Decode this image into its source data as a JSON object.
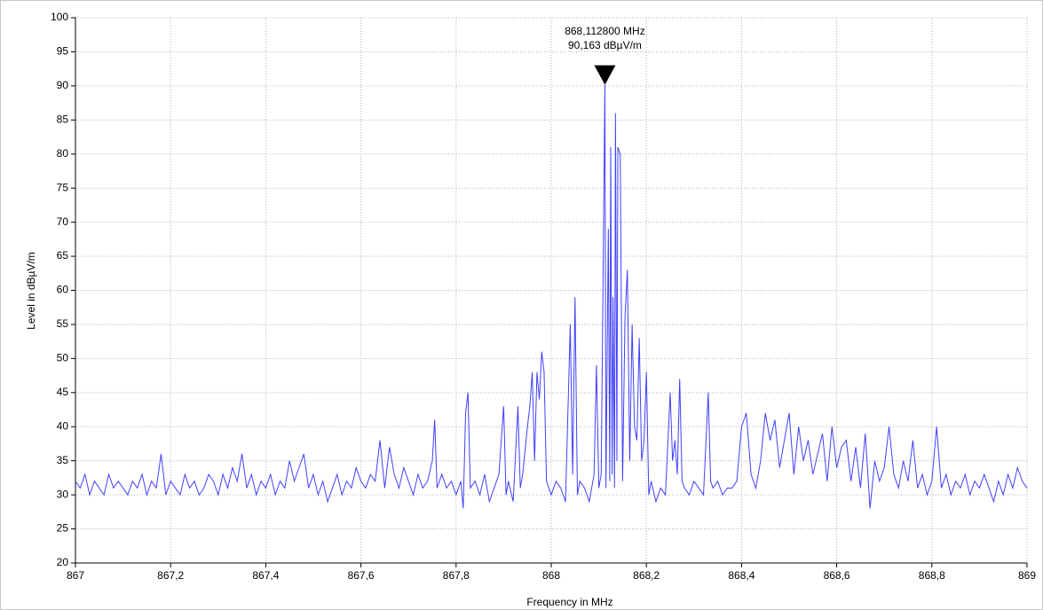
{
  "chart_data": {
    "type": "line",
    "x_label": "Frequency in MHz",
    "y_label": "Level in dBµV/m",
    "color": "#4040ff",
    "grid": true,
    "xlim": [
      867,
      869
    ],
    "xticks": [
      867,
      {
        "value": 867.2,
        "label": "867,2"
      },
      {
        "value": 867.4,
        "label": "867,4"
      },
      {
        "value": 867.6,
        "label": "867,6"
      },
      {
        "value": 867.8,
        "label": "867,8"
      },
      868,
      {
        "value": 868.2,
        "label": "868,2"
      },
      {
        "value": 868.4,
        "label": "868,4"
      },
      {
        "value": 868.6,
        "label": "868,6"
      },
      {
        "value": 868.8,
        "label": "868,8"
      },
      869
    ],
    "ylim": [
      20,
      100
    ],
    "yticks": [
      20,
      25,
      30,
      35,
      40,
      45,
      50,
      55,
      60,
      65,
      70,
      75,
      80,
      85,
      90,
      95,
      100
    ],
    "marker": {
      "x": 868.1128,
      "y": 90.163,
      "labels": [
        "868,112800 MHz",
        "90,163 dBµV/m"
      ]
    },
    "x": [
      867.0,
      867.01,
      867.02,
      867.03,
      867.04,
      867.05,
      867.06,
      867.07,
      867.08,
      867.09,
      867.1,
      867.11,
      867.12,
      867.13,
      867.14,
      867.15,
      867.16,
      867.17,
      867.18,
      867.19,
      867.2,
      867.21,
      867.22,
      867.23,
      867.24,
      867.25,
      867.26,
      867.27,
      867.28,
      867.29,
      867.3,
      867.31,
      867.32,
      867.33,
      867.34,
      867.35,
      867.36,
      867.37,
      867.38,
      867.39,
      867.4,
      867.41,
      867.42,
      867.43,
      867.44,
      867.45,
      867.46,
      867.47,
      867.48,
      867.49,
      867.5,
      867.51,
      867.52,
      867.53,
      867.54,
      867.55,
      867.56,
      867.57,
      867.58,
      867.59,
      867.6,
      867.61,
      867.62,
      867.63,
      867.64,
      867.65,
      867.66,
      867.67,
      867.68,
      867.69,
      867.7,
      867.71,
      867.72,
      867.73,
      867.74,
      867.75,
      867.755,
      867.76,
      867.77,
      867.78,
      867.79,
      867.8,
      867.81,
      867.815,
      867.82,
      867.825,
      867.83,
      867.84,
      867.85,
      867.86,
      867.87,
      867.88,
      867.89,
      867.9,
      867.905,
      867.91,
      867.92,
      867.93,
      867.935,
      867.94,
      867.95,
      867.955,
      867.96,
      867.965,
      867.97,
      867.975,
      867.98,
      867.985,
      867.99,
      868.0,
      868.01,
      868.02,
      868.03,
      868.04,
      868.045,
      868.05,
      868.055,
      868.06,
      868.07,
      868.08,
      868.09,
      868.095,
      868.1,
      868.105,
      868.1128,
      868.115,
      868.12,
      868.123,
      868.125,
      868.128,
      868.13,
      868.133,
      868.135,
      868.138,
      868.14,
      868.145,
      868.15,
      868.155,
      868.16,
      868.165,
      868.17,
      868.175,
      868.18,
      868.185,
      868.19,
      868.195,
      868.2,
      868.205,
      868.21,
      868.22,
      868.23,
      868.24,
      868.25,
      868.255,
      868.26,
      868.265,
      868.27,
      868.275,
      868.28,
      868.29,
      868.3,
      868.31,
      868.32,
      868.33,
      868.335,
      868.34,
      868.35,
      868.36,
      868.37,
      868.38,
      868.39,
      868.4,
      868.41,
      868.42,
      868.43,
      868.44,
      868.45,
      868.46,
      868.47,
      868.48,
      868.49,
      868.5,
      868.51,
      868.52,
      868.53,
      868.54,
      868.55,
      868.56,
      868.57,
      868.58,
      868.59,
      868.6,
      868.61,
      868.62,
      868.63,
      868.64,
      868.65,
      868.66,
      868.67,
      868.68,
      868.69,
      868.7,
      868.71,
      868.72,
      868.73,
      868.74,
      868.75,
      868.76,
      868.77,
      868.78,
      868.79,
      868.8,
      868.81,
      868.82,
      868.83,
      868.84,
      868.85,
      868.86,
      868.87,
      868.88,
      868.89,
      868.9,
      868.91,
      868.92,
      868.93,
      868.94,
      868.95,
      868.96,
      868.97,
      868.98,
      868.99,
      869.0
    ],
    "values": [
      32,
      31,
      33,
      30,
      32,
      31,
      30,
      33,
      31,
      32,
      31,
      30,
      32,
      31,
      33,
      30,
      32,
      31,
      36,
      30,
      32,
      31,
      30,
      33,
      31,
      32,
      30,
      31,
      33,
      32,
      30,
      33,
      31,
      34,
      32,
      36,
      31,
      33,
      30,
      32,
      31,
      33,
      30,
      32,
      31,
      35,
      32,
      34,
      36,
      31,
      33,
      30,
      32,
      29,
      31,
      33,
      30,
      32,
      31,
      34,
      32,
      31,
      33,
      32,
      38,
      31,
      37,
      33,
      31,
      34,
      32,
      30,
      33,
      31,
      32,
      35,
      41,
      31,
      33,
      31,
      32,
      30,
      32,
      28,
      42,
      45,
      31,
      32,
      30,
      33,
      29,
      31,
      33,
      43,
      30,
      32,
      29,
      43,
      31,
      33,
      40,
      43,
      48,
      35,
      48,
      44,
      51,
      48,
      32,
      30,
      32,
      31,
      29,
      55,
      33,
      59,
      30,
      32,
      31,
      29,
      33,
      49,
      31,
      33,
      90.163,
      31,
      69,
      32,
      81,
      33,
      59,
      31,
      86,
      35,
      81,
      80,
      32,
      56,
      63,
      35,
      55,
      40,
      38,
      53,
      35,
      38,
      48,
      30,
      32,
      29,
      31,
      30,
      45,
      35,
      38,
      33,
      47,
      32,
      31,
      30,
      32,
      31,
      30,
      45,
      32,
      31,
      32,
      30,
      31,
      31,
      32,
      40,
      42,
      33,
      31,
      35,
      42,
      38,
      41,
      34,
      38,
      42,
      33,
      40,
      35,
      38,
      33,
      36,
      39,
      32,
      40,
      34,
      37,
      38,
      32,
      37,
      31,
      39,
      28,
      35,
      32,
      34,
      40,
      33,
      31,
      35,
      32,
      38,
      31,
      33,
      30,
      32,
      40,
      31,
      33,
      30,
      32,
      31,
      33,
      30,
      32,
      31,
      33,
      31,
      29,
      32,
      30,
      33,
      31,
      34,
      32,
      31
    ]
  }
}
